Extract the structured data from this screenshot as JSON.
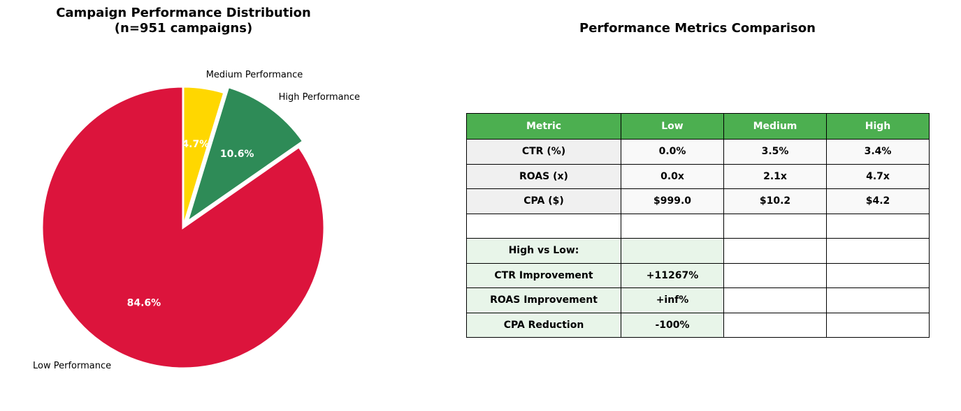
{
  "chart_data": [
    {
      "type": "pie",
      "title_line1": "Campaign Performance Distribution",
      "title_line2": "(n=951 campaigns)",
      "slices": [
        {
          "label": "Medium Performance",
          "value": 4.7,
          "pct_label": "4.7%",
          "color": "#FFD700",
          "explode": false
        },
        {
          "label": "High Performance",
          "value": 10.6,
          "pct_label": "10.6%",
          "color": "#2E8B57",
          "explode": true
        },
        {
          "label": "Low Performance",
          "value": 84.6,
          "pct_label": "84.6%",
          "color": "#DC143C",
          "explode": false
        }
      ]
    },
    {
      "type": "table",
      "title": "Performance Metrics Comparison",
      "header": [
        "Metric",
        "Low",
        "Medium",
        "High"
      ],
      "header_color": "#4CAF50",
      "rows": [
        [
          "CTR (%)",
          "0.0%",
          "3.5%",
          "3.4%"
        ],
        [
          "ROAS (x)",
          "0.0x",
          "2.1x",
          "4.7x"
        ],
        [
          "CPA ($)",
          "$999.0",
          "$10.2",
          "$4.2"
        ],
        [
          "",
          "",
          "",
          ""
        ],
        [
          "High vs Low:",
          "",
          "",
          ""
        ],
        [
          "CTR Improvement",
          "+11267%",
          "",
          ""
        ],
        [
          "ROAS Improvement",
          "+inf%",
          "",
          ""
        ],
        [
          "CPA Reduction",
          "-100%",
          "",
          ""
        ]
      ]
    }
  ]
}
